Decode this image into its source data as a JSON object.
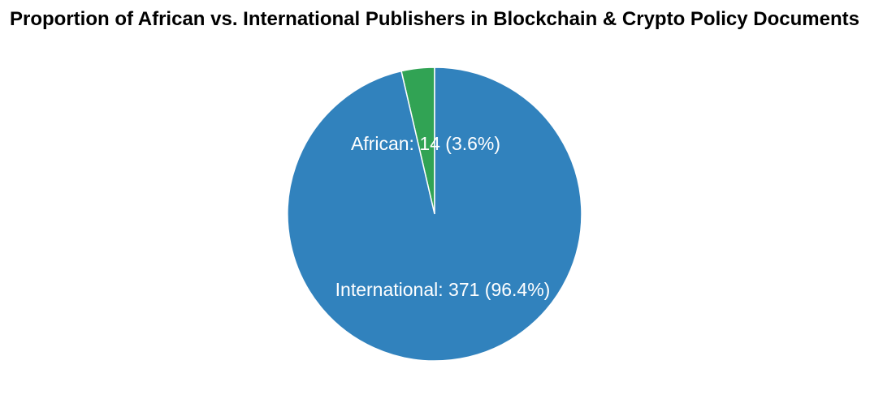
{
  "chart_data": {
    "type": "pie",
    "title": "Proportion of African vs. International Publishers in Blockchain & Crypto Policy Documents",
    "slices": [
      {
        "name": "African",
        "value": 14,
        "percent": 3.6,
        "color": "#31a354",
        "label": "African: 14 (3.6%)"
      },
      {
        "name": "International",
        "value": 371,
        "percent": 96.4,
        "color": "#3182bd",
        "label": "International: 371 (96.4%)"
      }
    ],
    "legend": "none",
    "slice_border_color": "#ffffff"
  }
}
